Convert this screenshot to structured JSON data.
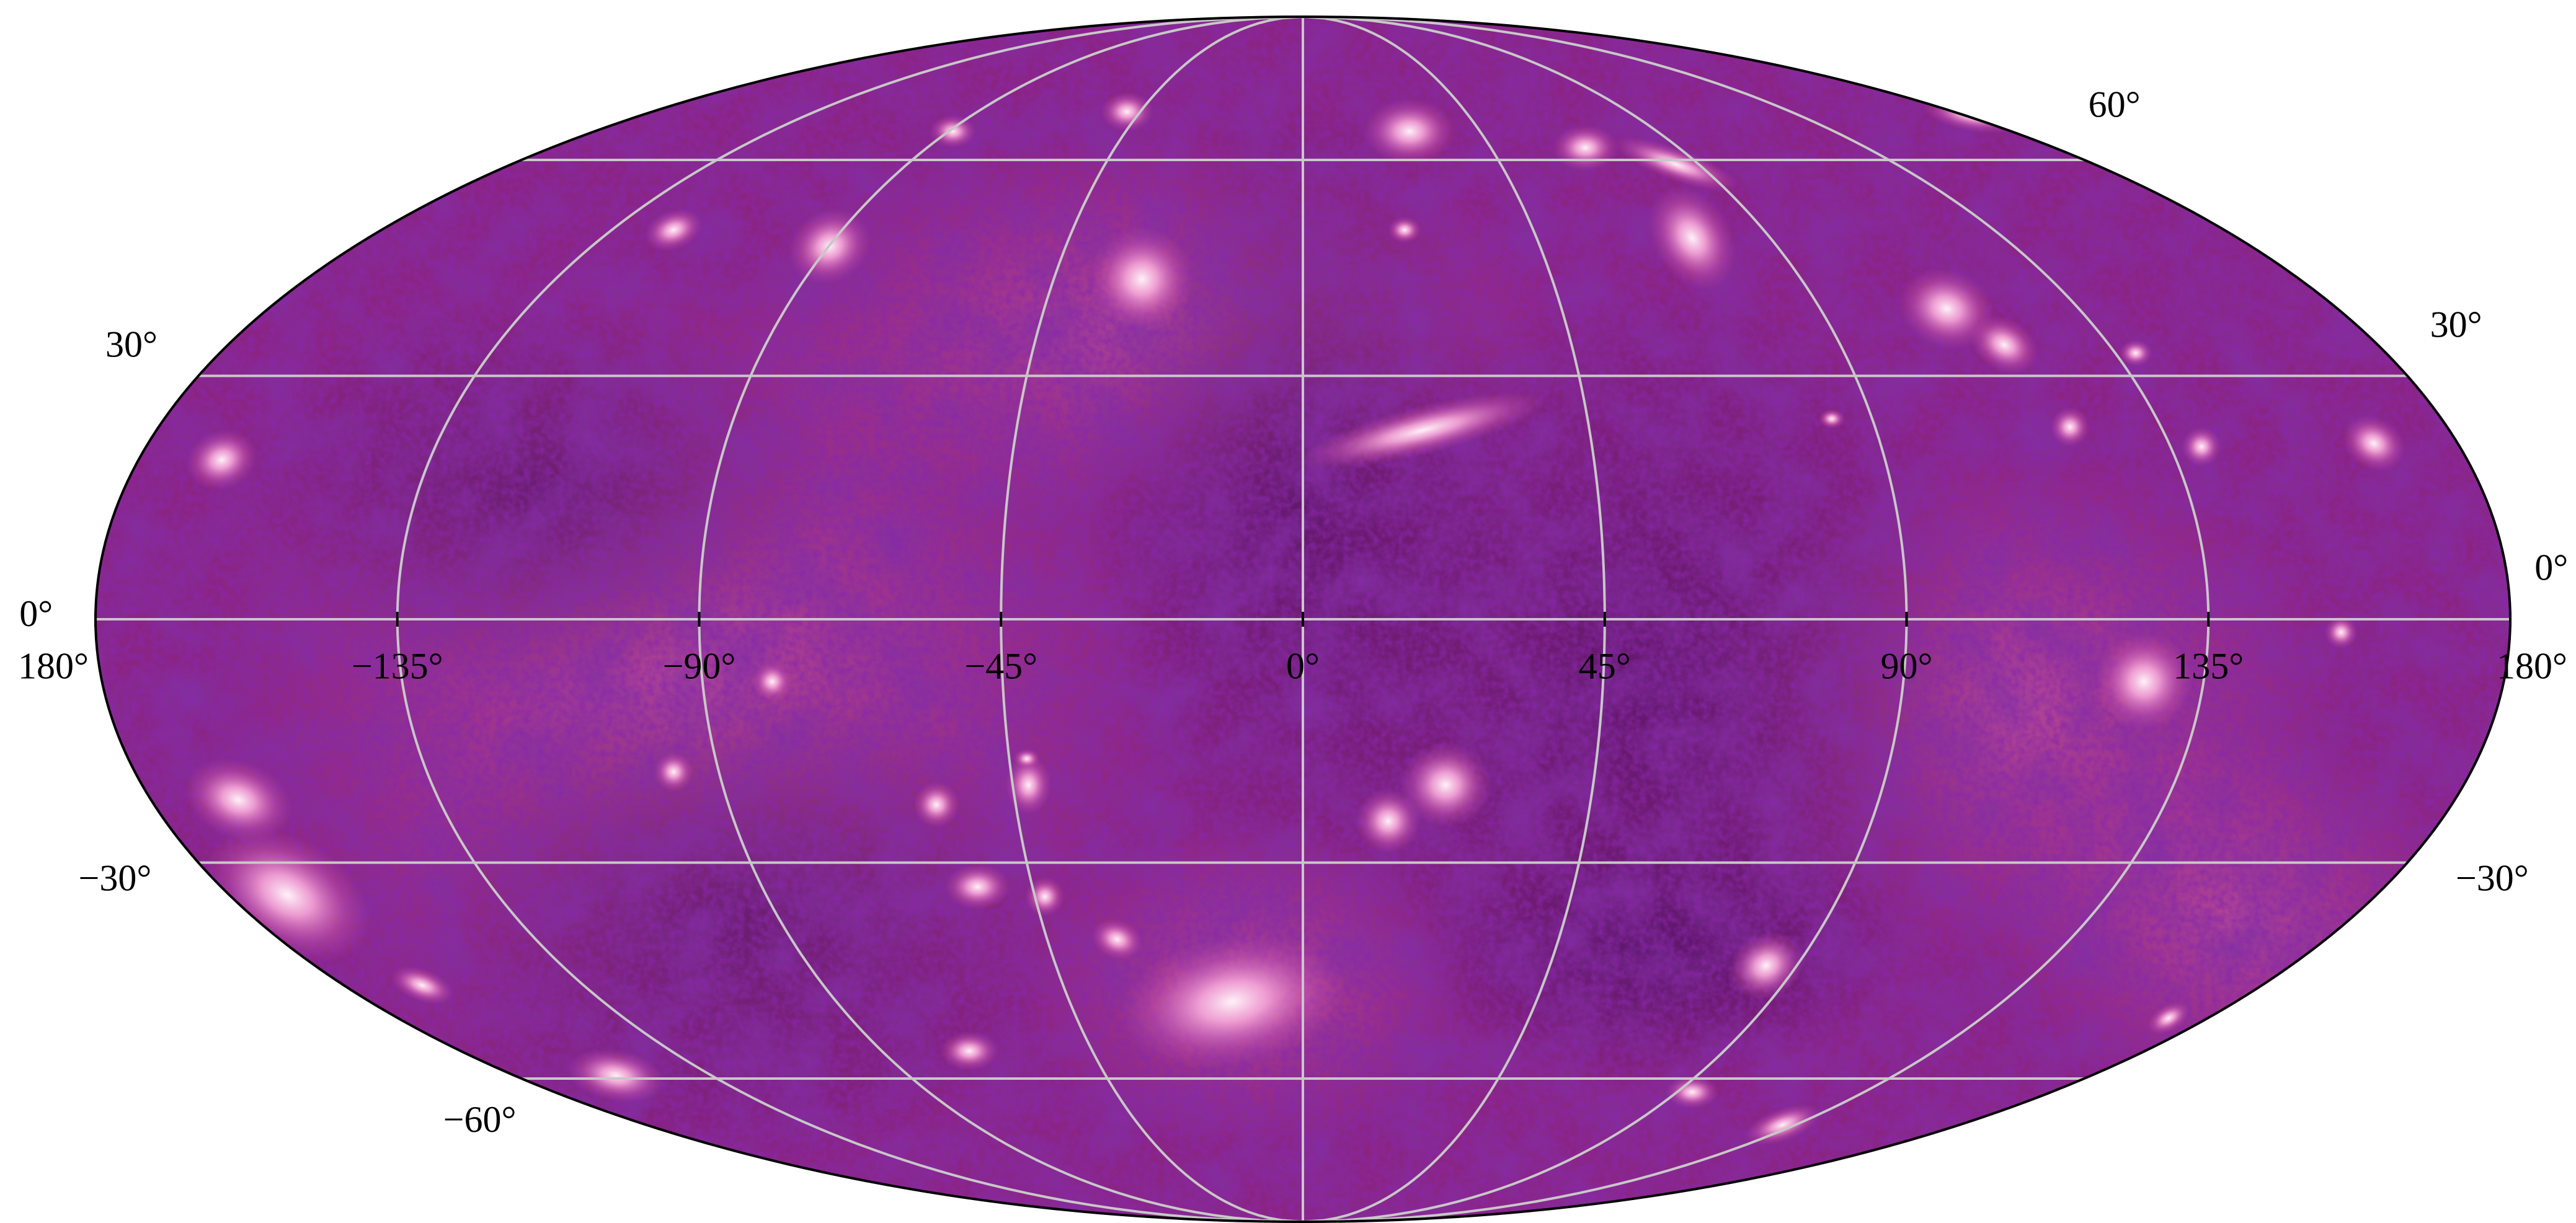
{
  "map": {
    "projection": "mollweide",
    "xticks": [
      {
        "value": -180,
        "label": "180°"
      },
      {
        "value": -135,
        "label": "−135°"
      },
      {
        "value": -90,
        "label": "−90°"
      },
      {
        "value": -45,
        "label": "−45°"
      },
      {
        "value": 0,
        "label": "0°"
      },
      {
        "value": 45,
        "label": "45°"
      },
      {
        "value": 90,
        "label": "90°"
      },
      {
        "value": 135,
        "label": "135°"
      },
      {
        "value": 180,
        "label": "180°"
      }
    ],
    "yticks": [
      {
        "value": -60,
        "label": "−60°"
      },
      {
        "value": -30,
        "label": "−30°"
      },
      {
        "value": 0,
        "label": "0°"
      },
      {
        "value": 30,
        "label": "30°"
      },
      {
        "value": 60,
        "label": "60°"
      }
    ],
    "grid": true
  }
}
